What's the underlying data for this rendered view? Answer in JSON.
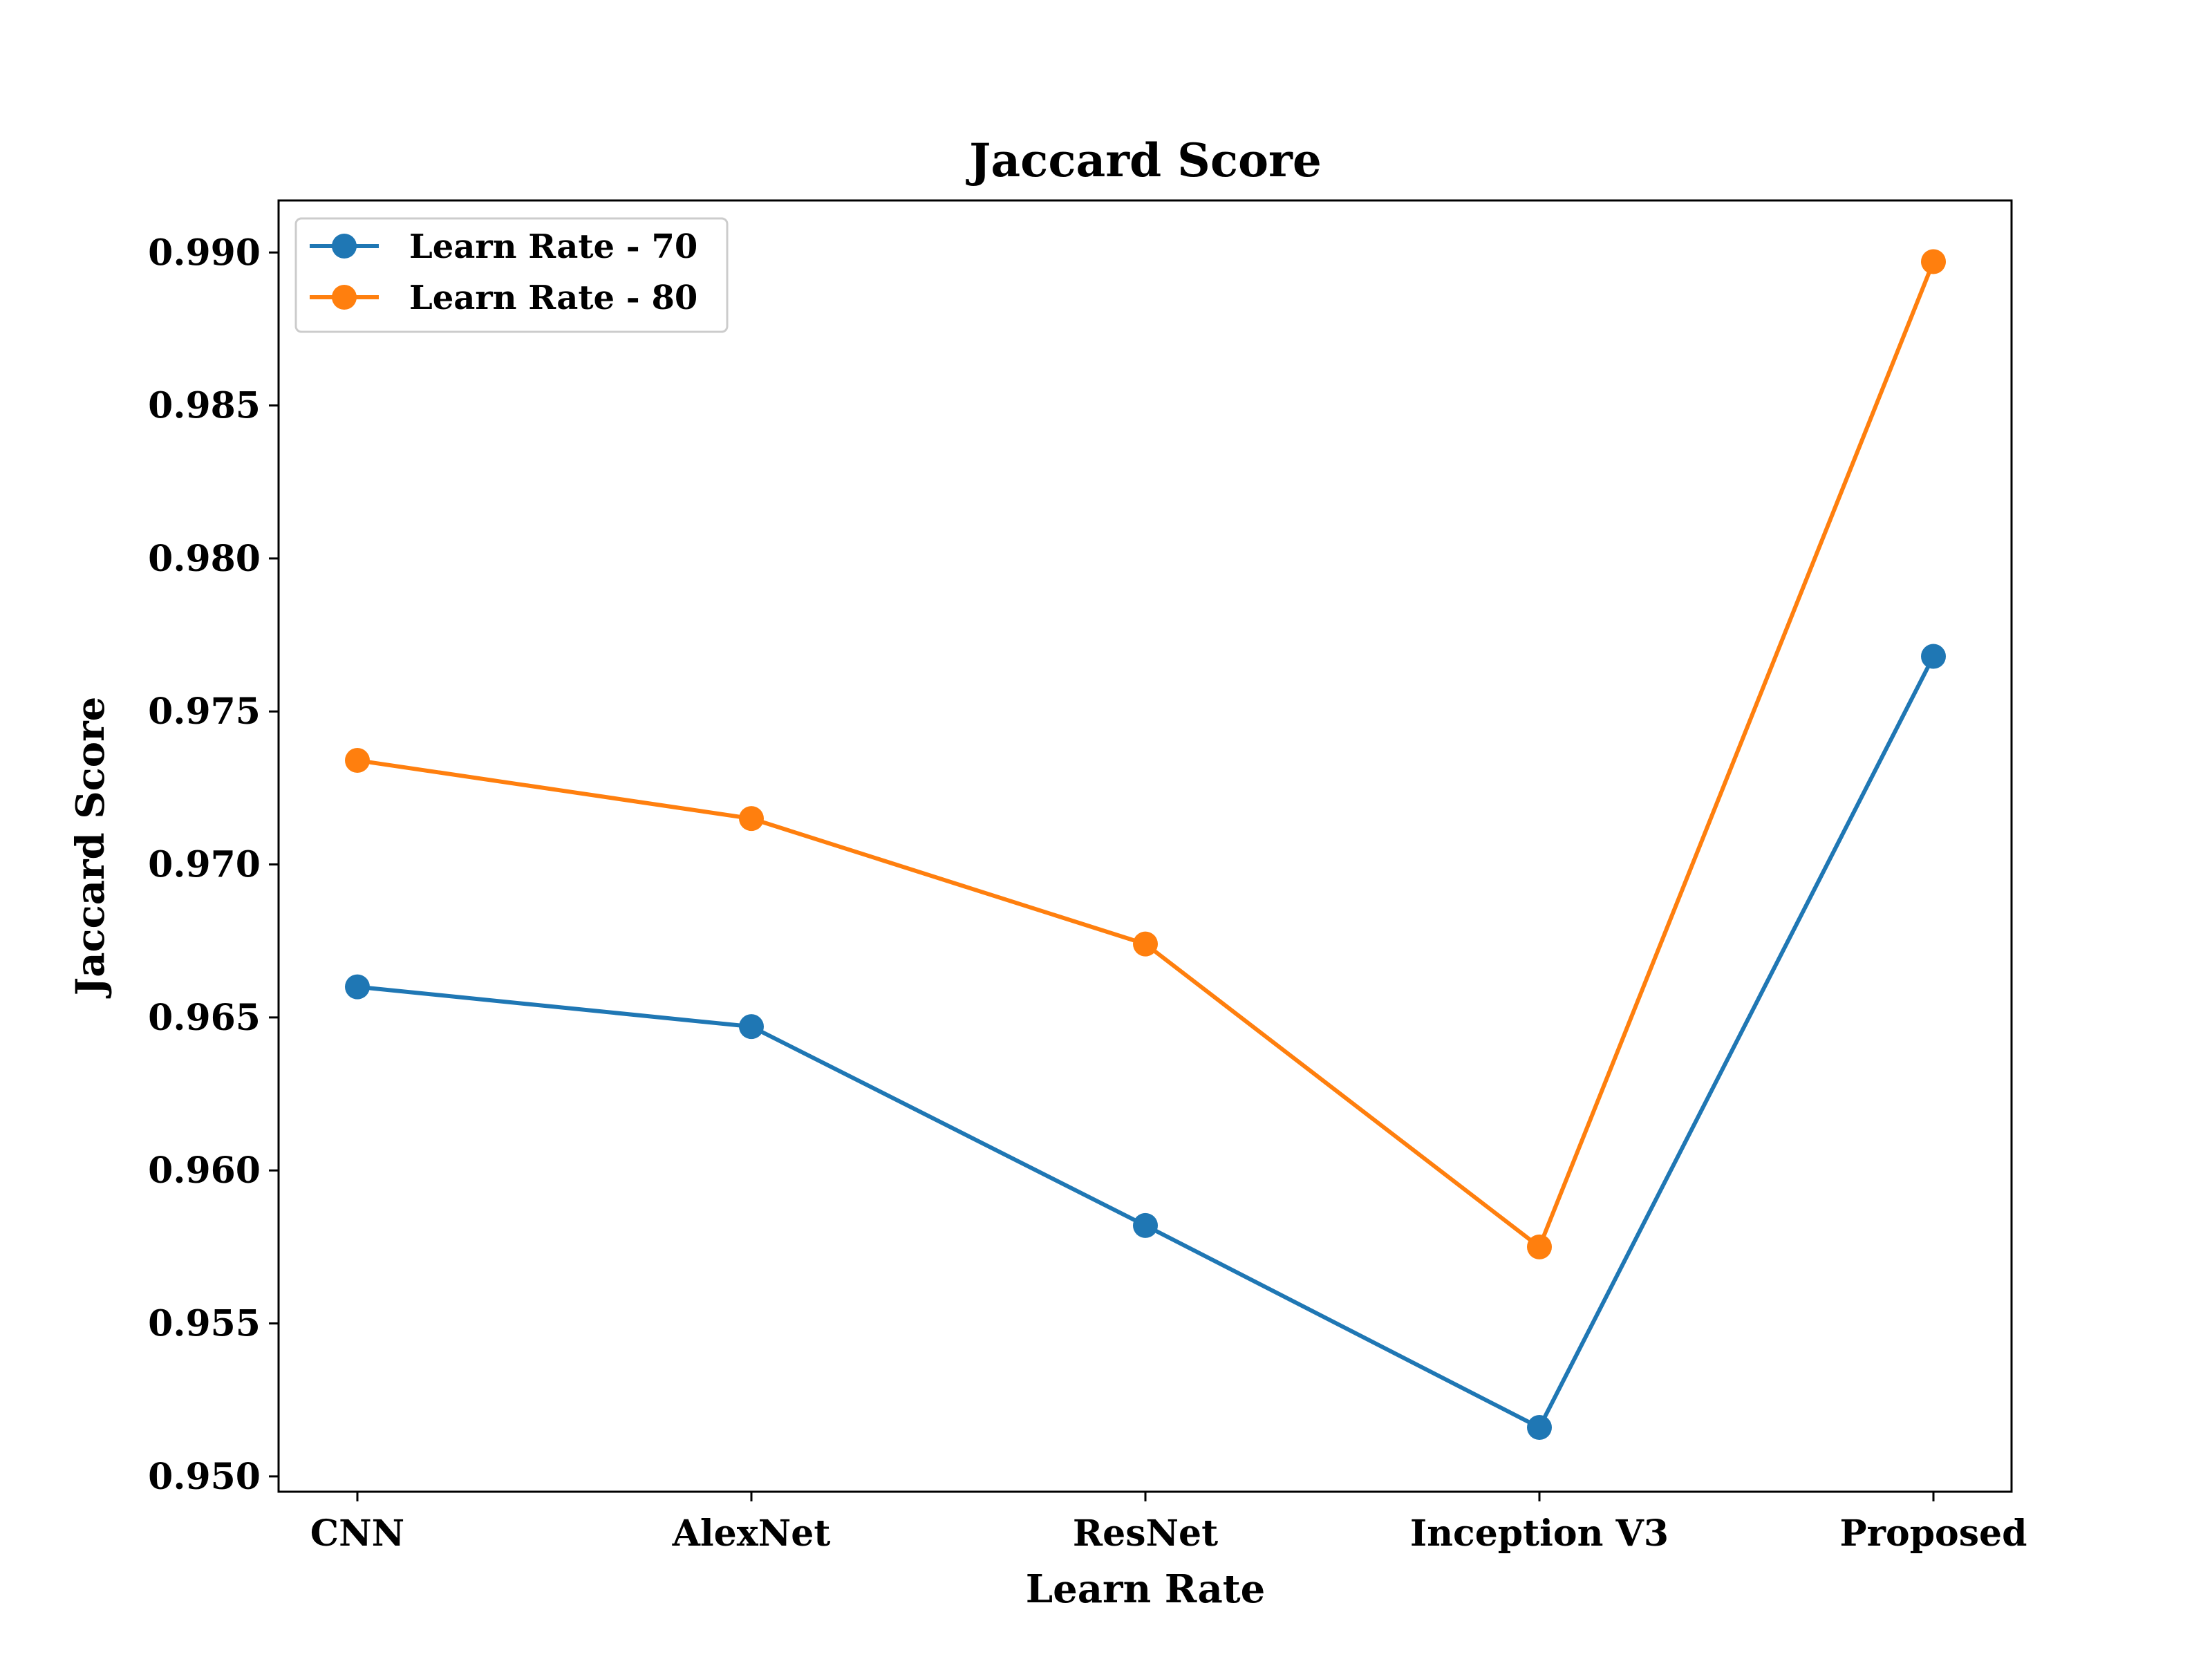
{
  "chart_data": {
    "type": "line",
    "title": "Jaccard Score",
    "xlabel": "Learn Rate",
    "ylabel": "Jaccard Score",
    "categories": [
      "CNN",
      "AlexNet",
      "ResNet",
      "Inception V3",
      "Proposed"
    ],
    "ylim": [
      0.9495,
      0.9917
    ],
    "yticks": [
      "0.950",
      "0.955",
      "0.960",
      "0.965",
      "0.970",
      "0.975",
      "0.980",
      "0.985",
      "0.990"
    ],
    "grid": false,
    "legend_position": "top-left",
    "series": [
      {
        "name": "Learn Rate - 70",
        "color": "#1f77b4",
        "values": [
          0.966,
          0.9647,
          0.9582,
          0.9516,
          0.9768
        ]
      },
      {
        "name": "Learn Rate - 80",
        "color": "#ff7f0e",
        "values": [
          0.9734,
          0.9715,
          0.9674,
          0.9575,
          0.9897
        ]
      }
    ]
  }
}
